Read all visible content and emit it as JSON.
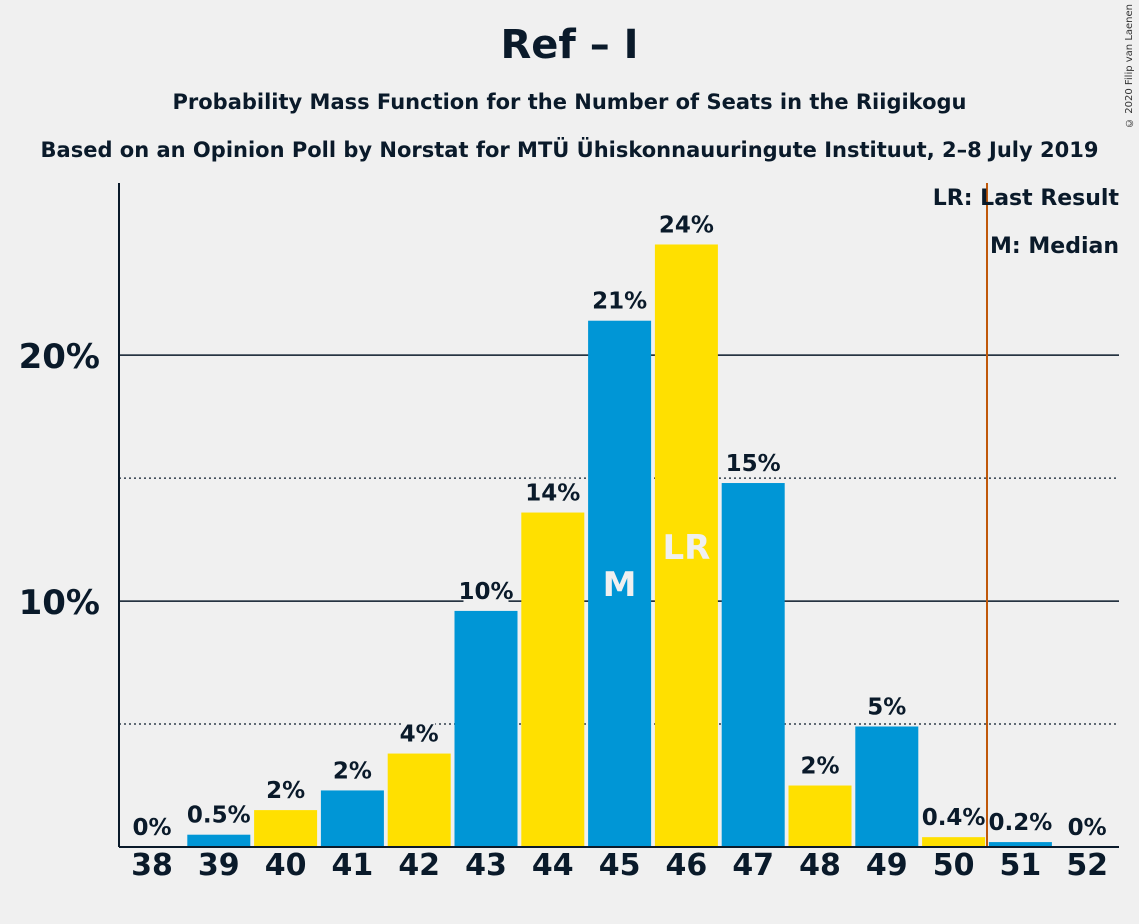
{
  "title": "Ref – I",
  "subtitle": "Probability Mass Function for the Number of Seats in the Riigikogu",
  "subtitle2": "Based on an Opinion Poll by Norstat for MTÜ Ühiskonnauuringute Instituut, 2–8 July 2019",
  "copyright": "© 2020 Filip van Laenen",
  "legend": {
    "last_result": "LR: Last Result",
    "median": "M: Median"
  },
  "colors": {
    "blue": "#0096d6",
    "yellow": "#ffe000",
    "last_result_line": "#c0580a",
    "text": "#0a1a2a"
  },
  "chart_data": {
    "type": "bar",
    "categories": [
      "38",
      "39",
      "40",
      "41",
      "42",
      "43",
      "44",
      "45",
      "46",
      "47",
      "48",
      "49",
      "50",
      "51",
      "52"
    ],
    "values": [
      0,
      0.5,
      1.5,
      2.3,
      3.8,
      9.6,
      13.6,
      21.4,
      24.5,
      14.8,
      2.5,
      4.9,
      0.4,
      0.2,
      0
    ],
    "labels": [
      "0%",
      "0.5%",
      "2%",
      "2%",
      "4%",
      "10%",
      "14%",
      "21%",
      "24%",
      "15%",
      "2%",
      "5%",
      "0.4%",
      "0.2%",
      "0%"
    ],
    "bar_colors": [
      "blue",
      "blue",
      "yellow",
      "blue",
      "yellow",
      "blue",
      "yellow",
      "blue",
      "yellow",
      "blue",
      "yellow",
      "blue",
      "yellow",
      "blue",
      "yellow"
    ],
    "ylim": [
      0,
      27
    ],
    "yticks": [
      {
        "value": 10,
        "label": "10%"
      },
      {
        "value": 20,
        "label": "20%"
      }
    ],
    "dotted_lines": [
      5,
      15
    ],
    "median_category": "45",
    "median_label": "M",
    "last_result_category": "46",
    "last_result_label": "LR",
    "last_result_line_after": "50",
    "xlabel": "",
    "ylabel": ""
  }
}
